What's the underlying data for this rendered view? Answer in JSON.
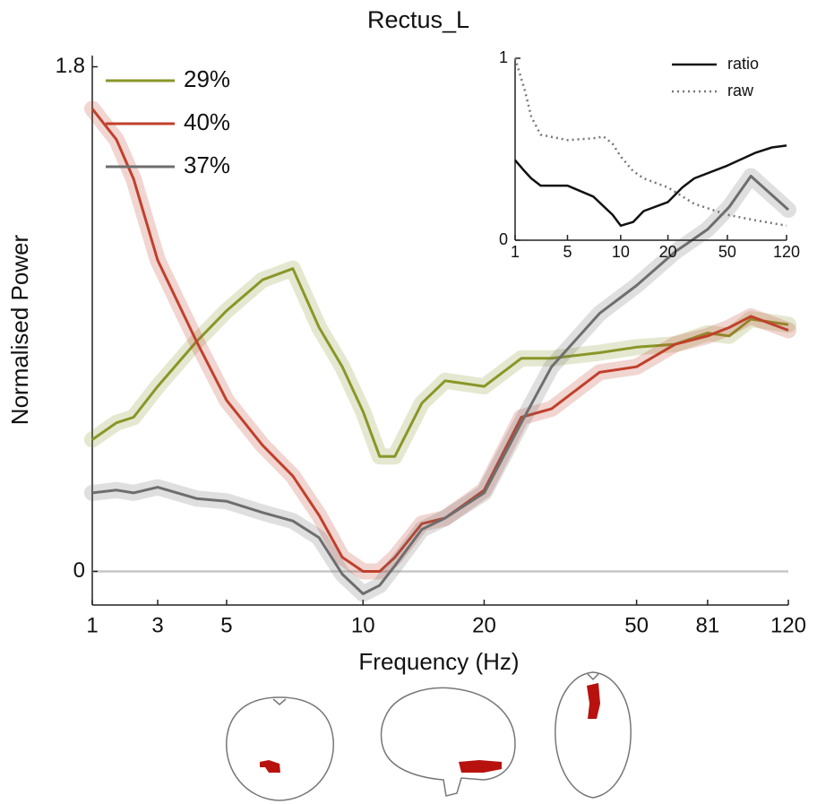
{
  "chart_data": [
    {
      "type": "line",
      "title": "Rectus_L",
      "x_label": "Frequency (Hz)",
      "y_label": "Normalised Power",
      "x_scale": "log",
      "x": [
        1,
        1.5,
        2,
        3,
        4,
        5,
        6,
        7,
        8,
        9,
        10,
        11,
        12,
        14,
        16,
        20,
        25,
        30,
        40,
        50,
        65,
        81,
        90,
        100,
        120
      ],
      "series": [
        {
          "name": "29%",
          "color": "#8a9628",
          "values": [
            0.47,
            0.53,
            0.55,
            0.66,
            0.82,
            0.93,
            1.04,
            1.08,
            0.87,
            0.73,
            0.57,
            0.41,
            0.41,
            0.6,
            0.68,
            0.66,
            0.76,
            0.76,
            0.78,
            0.8,
            0.81,
            0.85,
            0.84,
            0.9,
            0.88
          ]
        },
        {
          "name": "40%",
          "color": "#c0402c",
          "values": [
            1.65,
            1.54,
            1.4,
            1.11,
            0.82,
            0.61,
            0.45,
            0.34,
            0.2,
            0.05,
            0.0,
            0.0,
            0.05,
            0.17,
            0.19,
            0.29,
            0.55,
            0.58,
            0.71,
            0.73,
            0.81,
            0.84,
            0.87,
            0.91,
            0.86
          ]
        },
        {
          "name": "37%",
          "color": "#6e6e6e",
          "values": [
            0.28,
            0.29,
            0.28,
            0.3,
            0.26,
            0.25,
            0.21,
            0.18,
            0.12,
            -0.01,
            -0.08,
            -0.05,
            0.02,
            0.15,
            0.19,
            0.28,
            0.53,
            0.73,
            0.92,
            1.02,
            1.14,
            1.22,
            1.3,
            1.41,
            1.29
          ]
        }
      ],
      "xlim": [
        1,
        120
      ],
      "xticks": [
        1,
        3,
        5,
        10,
        20,
        50,
        81,
        120
      ],
      "ylim": [
        -0.12,
        1.84
      ],
      "yticks": [
        0,
        1.8
      ],
      "zero_line": true,
      "legend": "upper left"
    },
    {
      "type": "line",
      "x_scale": "log",
      "series": [
        {
          "name": "ratio",
          "color": "#111111",
          "style": "solid",
          "x": [
            1,
            1.5,
            2,
            3,
            5,
            7,
            9,
            10,
            12,
            14,
            20,
            25,
            30,
            50,
            81,
            100,
            120
          ],
          "values": [
            0.44,
            0.38,
            0.34,
            0.3,
            0.3,
            0.24,
            0.14,
            0.08,
            0.1,
            0.16,
            0.21,
            0.29,
            0.34,
            0.41,
            0.48,
            0.51,
            0.52
          ]
        },
        {
          "name": "raw",
          "color": "#777777",
          "style": "dotted",
          "x": [
            1,
            1.5,
            2,
            3,
            5,
            7,
            8,
            9,
            10,
            12,
            14,
            20,
            30,
            50,
            81,
            120
          ],
          "values": [
            1.0,
            0.83,
            0.68,
            0.58,
            0.55,
            0.56,
            0.57,
            0.53,
            0.46,
            0.38,
            0.34,
            0.29,
            0.2,
            0.14,
            0.11,
            0.08
          ]
        }
      ],
      "xlim": [
        1,
        120
      ],
      "xticks": [
        1,
        5,
        10,
        20,
        50,
        120
      ],
      "ylim": [
        0,
        1
      ],
      "yticks": [
        0,
        1
      ],
      "legend": "upper right"
    }
  ]
}
